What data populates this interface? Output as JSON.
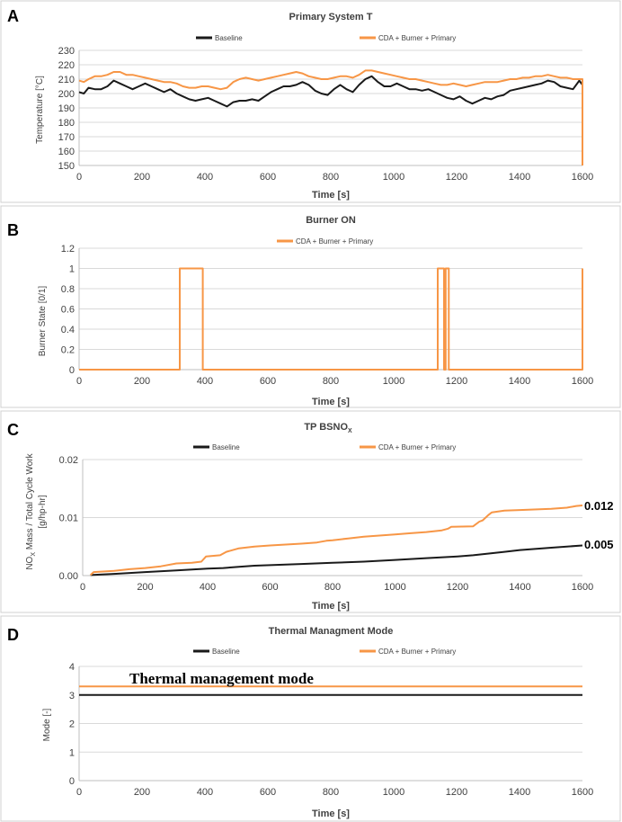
{
  "colors": {
    "baseline": "#1a1a1a",
    "cda": "#f79646",
    "grid": "#d9d9d9",
    "axis": "#bfbfbf",
    "text": "#404040"
  },
  "chart_data": [
    {
      "id": "A",
      "panel_label": "A",
      "type": "line",
      "title": "Primary System T",
      "xlabel": "Time [s]",
      "ylabel": "Temperature [°C]",
      "xlim": [
        0,
        1600
      ],
      "ylim": [
        150,
        230
      ],
      "xticks": [
        0,
        200,
        400,
        600,
        800,
        1000,
        1200,
        1400,
        1600
      ],
      "yticks": [
        150,
        160,
        170,
        180,
        190,
        200,
        210,
        220,
        230
      ],
      "legend": [
        "Baseline",
        "CDA + Burner + Primary"
      ],
      "series": [
        {
          "name": "Baseline",
          "color": "#1a1a1a",
          "step": false,
          "x": [
            0,
            15,
            30,
            50,
            70,
            90,
            110,
            130,
            150,
            170,
            190,
            210,
            230,
            250,
            270,
            290,
            310,
            330,
            350,
            370,
            390,
            410,
            430,
            450,
            470,
            490,
            510,
            530,
            550,
            570,
            590,
            610,
            630,
            650,
            670,
            690,
            710,
            730,
            750,
            770,
            790,
            810,
            830,
            850,
            870,
            890,
            910,
            930,
            950,
            970,
            990,
            1010,
            1030,
            1050,
            1070,
            1090,
            1110,
            1130,
            1150,
            1170,
            1190,
            1210,
            1230,
            1250,
            1270,
            1290,
            1310,
            1330,
            1350,
            1370,
            1390,
            1410,
            1430,
            1450,
            1470,
            1490,
            1510,
            1530,
            1550,
            1570,
            1590,
            1600,
            1600
          ],
          "y": [
            201,
            200,
            204,
            203,
            203,
            205,
            209,
            207,
            205,
            203,
            205,
            207,
            205,
            203,
            201,
            203,
            200,
            198,
            196,
            195,
            196,
            197,
            195,
            193,
            191,
            194,
            195,
            195,
            196,
            195,
            198,
            201,
            203,
            205,
            205,
            206,
            208,
            206,
            202,
            200,
            199,
            203,
            206,
            203,
            201,
            206,
            210,
            212,
            208,
            205,
            205,
            207,
            205,
            203,
            203,
            202,
            203,
            201,
            199,
            197,
            196,
            198,
            195,
            193,
            195,
            197,
            196,
            198,
            199,
            202,
            203,
            204,
            205,
            206,
            207,
            209,
            208,
            205,
            204,
            203,
            209,
            206,
            151
          ]
        },
        {
          "name": "CDA + Burner + Primary",
          "color": "#f79646",
          "step": false,
          "x": [
            0,
            15,
            30,
            50,
            70,
            90,
            110,
            130,
            150,
            170,
            190,
            210,
            230,
            250,
            270,
            290,
            310,
            330,
            350,
            370,
            390,
            410,
            430,
            450,
            470,
            490,
            510,
            530,
            550,
            570,
            590,
            610,
            630,
            650,
            670,
            690,
            710,
            730,
            750,
            770,
            790,
            810,
            830,
            850,
            870,
            890,
            910,
            930,
            950,
            970,
            990,
            1010,
            1030,
            1050,
            1070,
            1090,
            1110,
            1130,
            1150,
            1170,
            1190,
            1210,
            1230,
            1250,
            1270,
            1290,
            1310,
            1330,
            1350,
            1370,
            1390,
            1410,
            1430,
            1450,
            1470,
            1490,
            1510,
            1530,
            1550,
            1570,
            1590,
            1600,
            1600
          ],
          "y": [
            209,
            208,
            210,
            212,
            212,
            213,
            215,
            215,
            213,
            213,
            212,
            211,
            210,
            209,
            208,
            208,
            207,
            205,
            204,
            204,
            205,
            205,
            204,
            203,
            204,
            208,
            210,
            211,
            210,
            209,
            210,
            211,
            212,
            213,
            214,
            215,
            214,
            212,
            211,
            210,
            210,
            211,
            212,
            212,
            211,
            213,
            216,
            216,
            215,
            214,
            213,
            212,
            211,
            210,
            210,
            209,
            208,
            207,
            206,
            206,
            207,
            206,
            205,
            206,
            207,
            208,
            208,
            208,
            209,
            210,
            210,
            211,
            211,
            212,
            212,
            213,
            212,
            211,
            211,
            210,
            210,
            210,
            150
          ]
        }
      ]
    },
    {
      "id": "B",
      "panel_label": "B",
      "type": "line",
      "title": "Burner ON",
      "xlabel": "Time [s]",
      "ylabel": "Burner State [0/1]",
      "xlim": [
        0,
        1600
      ],
      "ylim": [
        0,
        1.2
      ],
      "xticks": [
        0,
        200,
        400,
        600,
        800,
        1000,
        1200,
        1400,
        1600
      ],
      "yticks": [
        0,
        0.2,
        0.4,
        0.6,
        0.8,
        1,
        1.2
      ],
      "legend": [
        "CDA + Burner + Primary"
      ],
      "series": [
        {
          "name": "CDA + Burner + Primary",
          "color": "#f79646",
          "step": false,
          "x": [
            0,
            320,
            320,
            393,
            393,
            1140,
            1140,
            1160,
            1160,
            1165,
            1165,
            1175,
            1175,
            1600,
            1600
          ],
          "y": [
            0,
            0,
            1,
            1,
            0,
            0,
            1,
            1,
            0,
            0,
            1,
            1,
            0,
            0,
            1
          ]
        }
      ]
    },
    {
      "id": "C",
      "panel_label": "C",
      "type": "line",
      "title": "TP BSNO",
      "title_sub": "X",
      "xlabel": "Time [s]",
      "ylabel_main": "NO",
      "ylabel_sub": "X",
      "ylabel_rest": " Mass / Total Cycle Work",
      "ylabel_line2": "[g/hp-hr]",
      "xlim": [
        0,
        1600
      ],
      "ylim": [
        0,
        0.02
      ],
      "xticks": [
        0,
        200,
        400,
        600,
        800,
        1000,
        1200,
        1400,
        1600
      ],
      "yticks": [
        0,
        0.01,
        0.02
      ],
      "ytick_labels": [
        "0.00",
        "0.01",
        "0.02"
      ],
      "legend": [
        "Baseline",
        "CDA + Burner + Primary"
      ],
      "end_labels": [
        "0.012",
        "0.005"
      ],
      "series": [
        {
          "name": "Baseline",
          "color": "#1a1a1a",
          "step": false,
          "x": [
            25,
            100,
            200,
            300,
            400,
            450,
            500,
            550,
            600,
            700,
            800,
            900,
            1000,
            1100,
            1200,
            1250,
            1300,
            1350,
            1400,
            1500,
            1600
          ],
          "y": [
            0.0001,
            0.0003,
            0.0006,
            0.0009,
            0.0012,
            0.0013,
            0.0015,
            0.0017,
            0.0018,
            0.002,
            0.0022,
            0.0024,
            0.0027,
            0.003,
            0.0033,
            0.0035,
            0.0038,
            0.0041,
            0.0044,
            0.0048,
            0.0052
          ]
        },
        {
          "name": "CDA + Burner + Primary",
          "color": "#f79646",
          "step": false,
          "x": [
            25,
            35,
            100,
            150,
            200,
            250,
            300,
            350,
            380,
            395,
            440,
            460,
            500,
            550,
            600,
            700,
            750,
            780,
            800,
            850,
            900,
            1000,
            1050,
            1100,
            1150,
            1170,
            1180,
            1250,
            1270,
            1280,
            1300,
            1310,
            1350,
            1400,
            1500,
            1550,
            1580,
            1600
          ],
          "y": [
            0.0001,
            0.0006,
            0.0008,
            0.0011,
            0.0013,
            0.0016,
            0.0021,
            0.0022,
            0.0024,
            0.0033,
            0.0035,
            0.0041,
            0.0047,
            0.005,
            0.0052,
            0.0055,
            0.0057,
            0.006,
            0.0061,
            0.0064,
            0.0067,
            0.0071,
            0.0073,
            0.0075,
            0.0078,
            0.0081,
            0.0084,
            0.0085,
            0.0093,
            0.0095,
            0.0105,
            0.0109,
            0.0112,
            0.0113,
            0.0115,
            0.0117,
            0.012,
            0.0121
          ]
        }
      ]
    },
    {
      "id": "D",
      "panel_label": "D",
      "type": "line",
      "title": "Thermal Managment Mode",
      "xlabel": "Time [s]",
      "ylabel": "Mode [-]",
      "xlim": [
        0,
        1600
      ],
      "ylim": [
        0,
        4
      ],
      "xticks": [
        0,
        200,
        400,
        600,
        800,
        1000,
        1200,
        1400,
        1600
      ],
      "yticks": [
        0,
        1,
        2,
        3,
        4
      ],
      "legend": [
        "Baseline",
        "CDA + Burner + Primary"
      ],
      "annotation": "Thermal management mode",
      "series": [
        {
          "name": "Baseline",
          "color": "#1a1a1a",
          "step": false,
          "x": [
            0,
            1600
          ],
          "y": [
            3,
            3
          ]
        },
        {
          "name": "CDA + Burner + Primary",
          "color": "#f79646",
          "step": false,
          "x": [
            0,
            1600
          ],
          "y": [
            3.3,
            3.3
          ]
        }
      ]
    }
  ]
}
